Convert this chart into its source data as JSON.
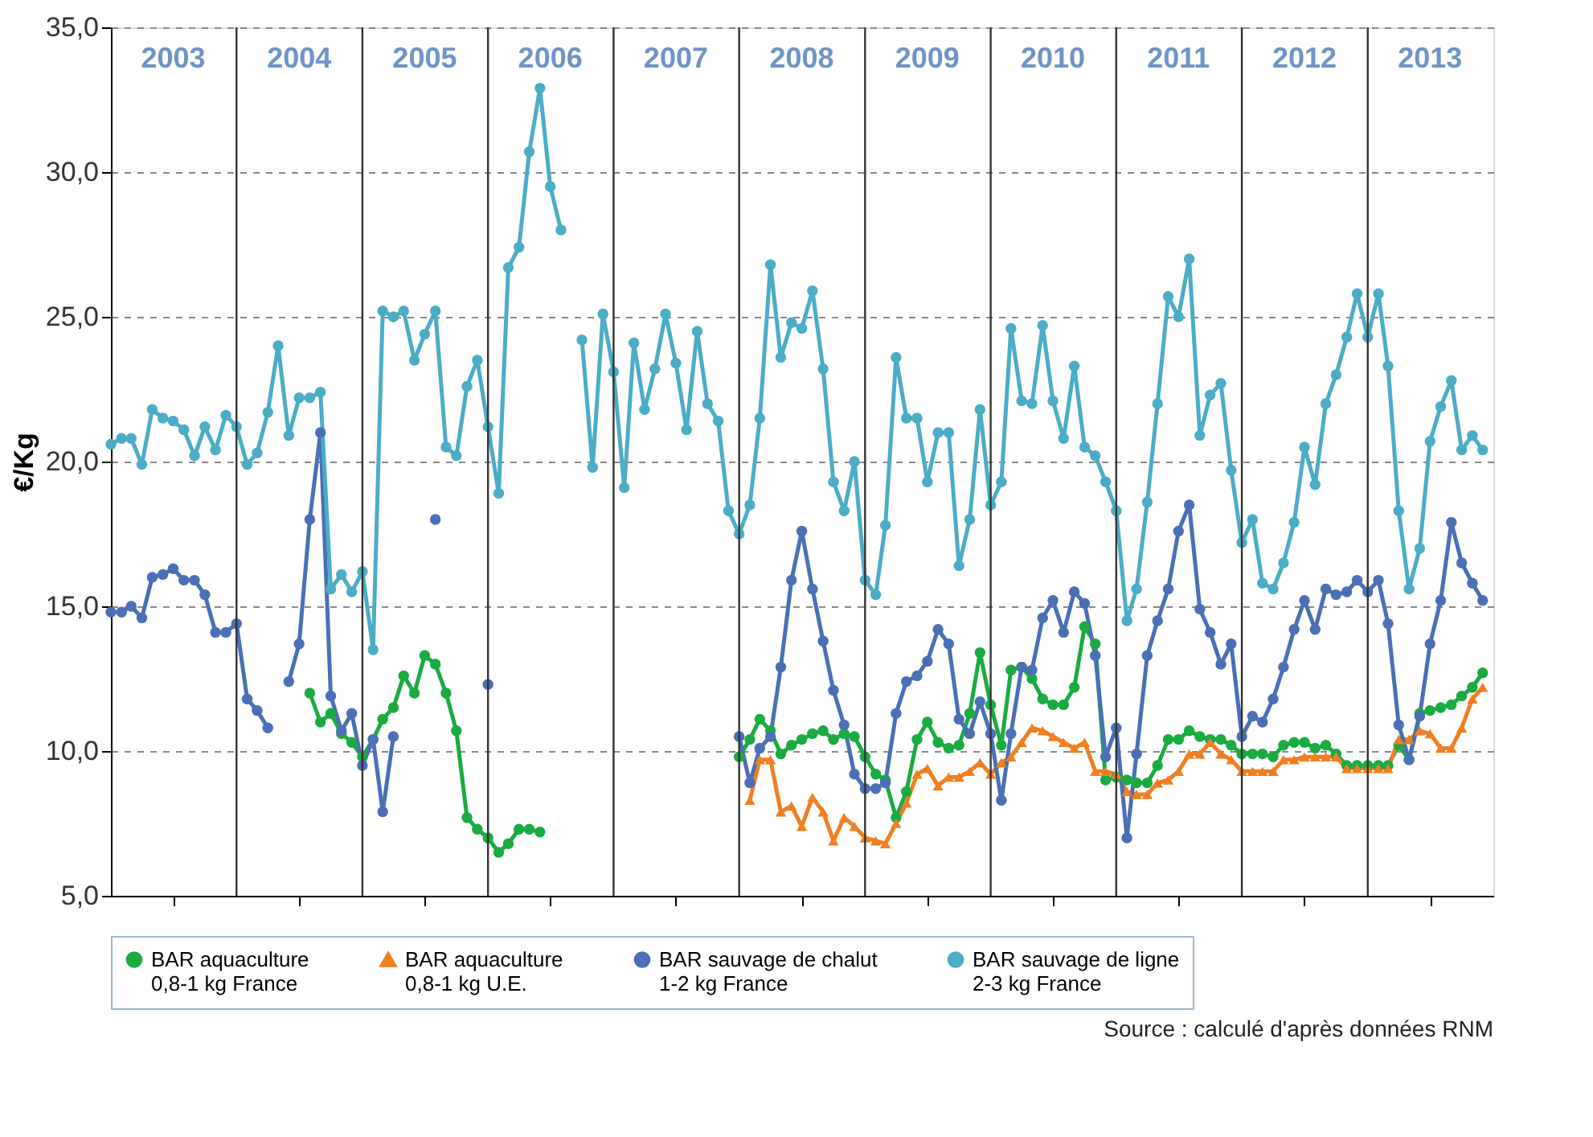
{
  "chart_data": {
    "type": "line",
    "ylabel": "€/Kg",
    "xlim": [
      "2003-01",
      "2014-01"
    ],
    "ylim": [
      5,
      35
    ],
    "yticks": [
      {
        "value": 5,
        "label": "5,0"
      },
      {
        "value": 10,
        "label": "10,0"
      },
      {
        "value": 15,
        "label": "15,0"
      },
      {
        "value": 20,
        "label": "20,0"
      },
      {
        "value": 25,
        "label": "25,0"
      },
      {
        "value": 30,
        "label": "30,0"
      },
      {
        "value": 35,
        "label": "35,0"
      }
    ],
    "xticks": [
      {
        "value": "2003-07",
        "label": "2003"
      },
      {
        "value": "2004-07",
        "label": "2004"
      },
      {
        "value": "2005-07",
        "label": "2005"
      },
      {
        "value": "2006-07",
        "label": "2006"
      },
      {
        "value": "2007-07",
        "label": "2007"
      },
      {
        "value": "2008-07",
        "label": "2008"
      },
      {
        "value": "2009-07",
        "label": "2009"
      },
      {
        "value": "2010-07",
        "label": "2010"
      },
      {
        "value": "2011-07",
        "label": "2011"
      },
      {
        "value": "2012-07",
        "label": "2012"
      },
      {
        "value": "2013-07",
        "label": "2013"
      }
    ],
    "grid": "y",
    "legend": "bottom",
    "line_style": "solid",
    "x": [
      "2003-01",
      "2003-02",
      "2003-03",
      "2003-04",
      "2003-05",
      "2003-06",
      "2003-07",
      "2003-08",
      "2003-09",
      "2003-10",
      "2003-11",
      "2003-12",
      "2004-01",
      "2004-02",
      "2004-03",
      "2004-04",
      "2004-05",
      "2004-06",
      "2004-07",
      "2004-08",
      "2004-09",
      "2004-10",
      "2004-11",
      "2004-12",
      "2005-01",
      "2005-02",
      "2005-03",
      "2005-04",
      "2005-05",
      "2005-06",
      "2005-07",
      "2005-08",
      "2005-09",
      "2005-10",
      "2005-11",
      "2005-12",
      "2006-01",
      "2006-02",
      "2006-03",
      "2006-04",
      "2006-05",
      "2006-06",
      "2006-07",
      "2006-08",
      "2006-09",
      "2006-10",
      "2006-11",
      "2006-12",
      "2007-01",
      "2007-02",
      "2007-03",
      "2007-04",
      "2007-05",
      "2007-06",
      "2007-07",
      "2007-08",
      "2007-09",
      "2007-10",
      "2007-11",
      "2007-12",
      "2008-01",
      "2008-02",
      "2008-03",
      "2008-04",
      "2008-05",
      "2008-06",
      "2008-07",
      "2008-08",
      "2008-09",
      "2008-10",
      "2008-11",
      "2008-12",
      "2009-01",
      "2009-02",
      "2009-03",
      "2009-04",
      "2009-05",
      "2009-06",
      "2009-07",
      "2009-08",
      "2009-09",
      "2009-10",
      "2009-11",
      "2009-12",
      "2010-01",
      "2010-02",
      "2010-03",
      "2010-04",
      "2010-05",
      "2010-06",
      "2010-07",
      "2010-08",
      "2010-09",
      "2010-10",
      "2010-11",
      "2010-12",
      "2011-01",
      "2011-02",
      "2011-03",
      "2011-04",
      "2011-05",
      "2011-06",
      "2011-07",
      "2011-08",
      "2011-09",
      "2011-10",
      "2011-11",
      "2011-12",
      "2012-01",
      "2012-02",
      "2012-03",
      "2012-04",
      "2012-05",
      "2012-06",
      "2012-07",
      "2012-08",
      "2012-09",
      "2012-10",
      "2012-11",
      "2012-12",
      "2013-01",
      "2013-02",
      "2013-03",
      "2013-04",
      "2013-05",
      "2013-06",
      "2013-07",
      "2013-08",
      "2013-09",
      "2013-10",
      "2013-11",
      "2013-12"
    ],
    "series": [
      {
        "name": "BAR aquaculture\n0,8-1 kg France",
        "color": "#1aab40",
        "marker": "circle",
        "values": [
          null,
          null,
          null,
          null,
          null,
          null,
          null,
          null,
          null,
          null,
          null,
          null,
          null,
          null,
          null,
          null,
          null,
          null,
          null,
          12.0,
          11.0,
          11.3,
          10.6,
          10.3,
          9.8,
          10.4,
          11.1,
          11.5,
          12.6,
          12.0,
          13.3,
          13.0,
          12.0,
          10.7,
          7.7,
          7.3,
          7.0,
          6.5,
          6.8,
          7.3,
          7.3,
          7.2,
          null,
          null,
          null,
          null,
          null,
          null,
          null,
          null,
          null,
          null,
          null,
          null,
          null,
          null,
          null,
          null,
          null,
          null,
          9.8,
          10.4,
          11.1,
          10.7,
          9.9,
          10.2,
          10.4,
          10.6,
          10.7,
          10.4,
          10.6,
          10.5,
          9.8,
          9.2,
          9.0,
          7.7,
          8.6,
          10.4,
          11.0,
          10.3,
          10.1,
          10.2,
          11.3,
          13.4,
          11.6,
          10.2,
          12.8,
          12.9,
          12.5,
          11.8,
          11.6,
          11.6,
          12.2,
          14.3,
          13.7,
          9.0,
          9.1,
          9.0,
          8.9,
          8.9,
          9.5,
          10.4,
          10.4,
          10.7,
          10.5,
          10.4,
          10.4,
          10.2,
          9.9,
          9.9,
          9.9,
          9.8,
          10.2,
          10.3,
          10.3,
          10.1,
          10.2,
          9.9,
          9.5,
          9.5,
          9.5,
          9.5,
          9.5,
          10.2,
          9.7,
          11.3,
          11.4,
          11.5,
          11.6,
          11.9,
          12.2,
          12.7
        ]
      },
      {
        "name": "BAR aquaculture\n0,8-1 kg U.E.",
        "color": "#f07f22",
        "marker": "triangle",
        "values": [
          null,
          null,
          null,
          null,
          null,
          null,
          null,
          null,
          null,
          null,
          null,
          null,
          null,
          null,
          null,
          null,
          null,
          null,
          null,
          null,
          null,
          null,
          null,
          null,
          null,
          null,
          null,
          null,
          null,
          null,
          null,
          null,
          null,
          null,
          null,
          null,
          null,
          null,
          null,
          null,
          null,
          null,
          null,
          null,
          null,
          null,
          null,
          null,
          null,
          null,
          null,
          null,
          null,
          null,
          null,
          null,
          null,
          null,
          null,
          null,
          null,
          8.3,
          9.7,
          9.7,
          7.9,
          8.1,
          7.4,
          8.4,
          7.9,
          6.9,
          7.7,
          7.4,
          7.0,
          6.9,
          6.8,
          7.5,
          8.2,
          9.2,
          9.4,
          8.8,
          9.1,
          9.1,
          9.3,
          9.6,
          9.2,
          9.6,
          9.8,
          10.3,
          10.8,
          10.7,
          10.5,
          10.3,
          10.1,
          10.3,
          9.3,
          9.3,
          9.2,
          8.6,
          8.5,
          8.5,
          8.9,
          9.0,
          9.3,
          9.9,
          9.9,
          10.3,
          9.9,
          9.7,
          9.3,
          9.3,
          9.3,
          9.3,
          9.7,
          9.7,
          9.8,
          9.8,
          9.8,
          9.8,
          9.4,
          9.4,
          9.4,
          9.4,
          9.4,
          10.4,
          10.4,
          10.7,
          10.6,
          10.1,
          10.1,
          10.8,
          11.8,
          12.2
        ]
      },
      {
        "name": "BAR sauvage de chalut\n1-2 kg France",
        "color": "#4a6fb5",
        "marker": "circle",
        "values": [
          14.8,
          14.8,
          15.0,
          14.6,
          16.0,
          16.1,
          16.3,
          15.9,
          15.9,
          15.4,
          14.1,
          14.1,
          14.4,
          11.8,
          11.4,
          10.8,
          null,
          12.4,
          13.7,
          18.0,
          21.0,
          11.9,
          10.7,
          11.3,
          9.5,
          10.4,
          7.9,
          10.5,
          null,
          null,
          null,
          18.0,
          null,
          null,
          null,
          null,
          12.3,
          null,
          null,
          null,
          null,
          null,
          null,
          null,
          null,
          null,
          null,
          null,
          null,
          null,
          null,
          null,
          null,
          null,
          null,
          null,
          null,
          null,
          null,
          null,
          10.5,
          8.9,
          10.1,
          10.5,
          12.9,
          15.9,
          17.6,
          15.6,
          13.8,
          12.1,
          10.9,
          9.2,
          8.7,
          8.7,
          8.9,
          11.3,
          12.4,
          12.6,
          13.1,
          14.2,
          13.7,
          11.1,
          10.6,
          11.7,
          10.6,
          8.3,
          10.6,
          12.9,
          12.8,
          14.6,
          15.2,
          14.1,
          15.5,
          15.1,
          13.3,
          9.8,
          10.8,
          7.0,
          9.9,
          13.3,
          14.5,
          15.6,
          17.6,
          18.5,
          14.9,
          14.1,
          13.0,
          13.7,
          10.5,
          11.2,
          11.0,
          11.8,
          12.9,
          14.2,
          15.2,
          14.2,
          15.6,
          15.4,
          15.5,
          15.9,
          15.5,
          15.9,
          14.4,
          10.9,
          9.7,
          11.2,
          13.7,
          15.2,
          17.9,
          16.5,
          15.8,
          15.2
        ]
      },
      {
        "name": "BAR sauvage de ligne\n2-3 kg France",
        "color": "#4bacc6",
        "marker": "circle",
        "values": [
          20.6,
          20.8,
          20.8,
          19.9,
          21.8,
          21.5,
          21.4,
          21.1,
          20.2,
          21.2,
          20.4,
          21.6,
          21.2,
          19.9,
          20.3,
          21.7,
          24.0,
          20.9,
          22.2,
          22.2,
          22.4,
          15.6,
          16.1,
          15.5,
          16.2,
          13.5,
          25.2,
          25.0,
          25.2,
          23.5,
          24.4,
          25.2,
          20.5,
          20.2,
          22.6,
          23.5,
          21.2,
          18.9,
          26.7,
          27.4,
          30.7,
          32.9,
          29.5,
          28.0,
          null,
          24.2,
          19.8,
          25.1,
          23.1,
          19.1,
          24.1,
          21.8,
          23.2,
          25.1,
          23.4,
          21.1,
          24.5,
          22.0,
          21.4,
          18.3,
          17.5,
          18.5,
          21.5,
          26.8,
          23.6,
          24.8,
          24.6,
          25.9,
          23.2,
          19.3,
          18.3,
          20.0,
          15.9,
          15.4,
          17.8,
          23.6,
          21.5,
          21.5,
          19.3,
          21.0,
          21.0,
          16.4,
          18.0,
          21.8,
          18.5,
          19.3,
          24.6,
          22.1,
          22.0,
          24.7,
          22.1,
          20.8,
          23.3,
          20.5,
          20.2,
          19.3,
          18.3,
          14.5,
          15.6,
          18.6,
          22.0,
          25.7,
          25.0,
          27.0,
          20.9,
          22.3,
          22.7,
          19.7,
          17.2,
          18.0,
          15.8,
          15.6,
          16.5,
          17.9,
          20.5,
          19.2,
          22.0,
          23.0,
          24.3,
          25.8,
          24.3,
          25.8,
          23.3,
          18.3,
          15.6,
          17.0,
          20.7,
          21.9,
          22.8,
          20.4,
          20.9,
          20.4
        ]
      }
    ],
    "ref_lines": [
      {
        "axis": "x",
        "value": "2004-01",
        "color": "#333333",
        "line_style": "solid"
      },
      {
        "axis": "x",
        "value": "2005-01",
        "color": "#333333",
        "line_style": "solid"
      },
      {
        "axis": "x",
        "value": "2006-01",
        "color": "#333333",
        "line_style": "solid"
      },
      {
        "axis": "x",
        "value": "2007-01",
        "color": "#333333",
        "line_style": "solid"
      },
      {
        "axis": "x",
        "value": "2008-01",
        "color": "#333333",
        "line_style": "solid"
      },
      {
        "axis": "x",
        "value": "2009-01",
        "color": "#333333",
        "line_style": "solid"
      },
      {
        "axis": "x",
        "value": "2010-01",
        "color": "#333333",
        "line_style": "solid"
      },
      {
        "axis": "x",
        "value": "2011-01",
        "color": "#333333",
        "line_style": "solid"
      },
      {
        "axis": "x",
        "value": "2012-01",
        "color": "#333333",
        "line_style": "solid"
      },
      {
        "axis": "x",
        "value": "2013-01",
        "color": "#333333",
        "line_style": "solid"
      }
    ],
    "annotations": [
      "Source : calculé d'après données RNM"
    ]
  }
}
